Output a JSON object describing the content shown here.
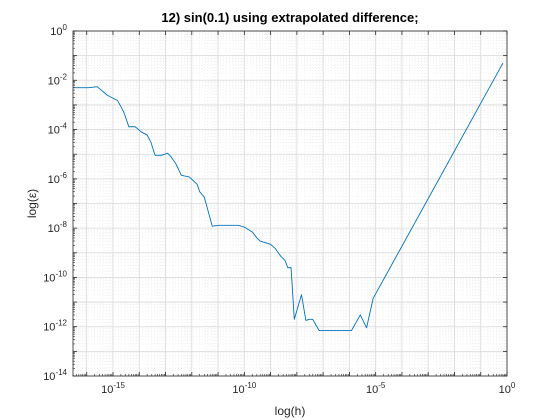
{
  "chart_data": {
    "type": "line",
    "title": "12) sin(0.1) using extrapolated difference;",
    "xlabel": "log(h)",
    "ylabel": "log(ε)",
    "xscale": "log",
    "yscale": "log",
    "xlim": [
      3e-17,
      1
    ],
    "ylim": [
      1e-14,
      1
    ],
    "grid": true,
    "minor_grid": true,
    "x_ticks": [
      {
        "value": 1e-15,
        "base": "10",
        "exp": "-15"
      },
      {
        "value": 1e-10,
        "base": "10",
        "exp": "-10"
      },
      {
        "value": 1e-05,
        "base": "10",
        "exp": "-5"
      },
      {
        "value": 1,
        "base": "10",
        "exp": "0"
      }
    ],
    "y_ticks": [
      {
        "value": 1e-14,
        "base": "10",
        "exp": "-14"
      },
      {
        "value": 1e-12,
        "base": "10",
        "exp": "-12"
      },
      {
        "value": 1e-10,
        "base": "10",
        "exp": "-10"
      },
      {
        "value": 1e-08,
        "base": "10",
        "exp": "-8"
      },
      {
        "value": 1e-06,
        "base": "10",
        "exp": "-6"
      },
      {
        "value": 0.0001,
        "base": "10",
        "exp": "-4"
      },
      {
        "value": 0.01,
        "base": "10",
        "exp": "-2"
      },
      {
        "value": 1,
        "base": "10",
        "exp": "0"
      }
    ],
    "series": [
      {
        "color": "#0072bd",
        "x": [
          3e-17,
          1.2e-16,
          2.5e-16,
          6e-16,
          1.5e-15,
          2.6e-15,
          4e-15,
          7e-15,
          1.2e-14,
          2e-14,
          2.8e-14,
          4e-14,
          7e-14,
          1.2e-13,
          1.6e-13,
          2.5e-13,
          4e-13,
          8e-13,
          1.6e-12,
          2e-12,
          3e-12,
          6e-12,
          1e-11,
          1.6e-11,
          3.2e-11,
          6e-11,
          1e-10,
          2e-10,
          3e-10,
          4e-10,
          1e-09,
          1.5e-09,
          2.5e-09,
          3.5e-09,
          4.5e-09,
          6e-09,
          8e-09,
          1.5e-08,
          2.2e-08,
          3e-08,
          4e-08,
          7e-08,
          1e-07,
          1.8e-07,
          3e-07,
          5.5e-07,
          1.2e-06,
          2.6e-06,
          4.5e-06,
          8e-06,
          0.7
        ],
        "y": [
          0.005,
          0.005,
          0.0055,
          0.0025,
          0.0015,
          0.0005,
          0.00013,
          0.00013,
          8e-05,
          6e-05,
          3e-05,
          9e-06,
          9e-06,
          1.1e-05,
          8e-06,
          4e-06,
          1.4e-06,
          1.2e-06,
          6e-07,
          3e-07,
          1.8e-07,
          1.2e-08,
          1.3e-08,
          1.3e-08,
          1.3e-08,
          1.3e-08,
          1.1e-08,
          7e-09,
          4e-09,
          3e-09,
          2.2e-09,
          1.5e-09,
          7e-10,
          5e-10,
          2.5e-10,
          2.5e-10,
          2e-12,
          2e-11,
          1.8e-12,
          2e-12,
          2e-12,
          7e-13,
          7e-13,
          7e-13,
          7e-13,
          7e-13,
          7e-13,
          3e-12,
          9e-13,
          1.4e-11,
          0.05
        ]
      }
    ]
  }
}
